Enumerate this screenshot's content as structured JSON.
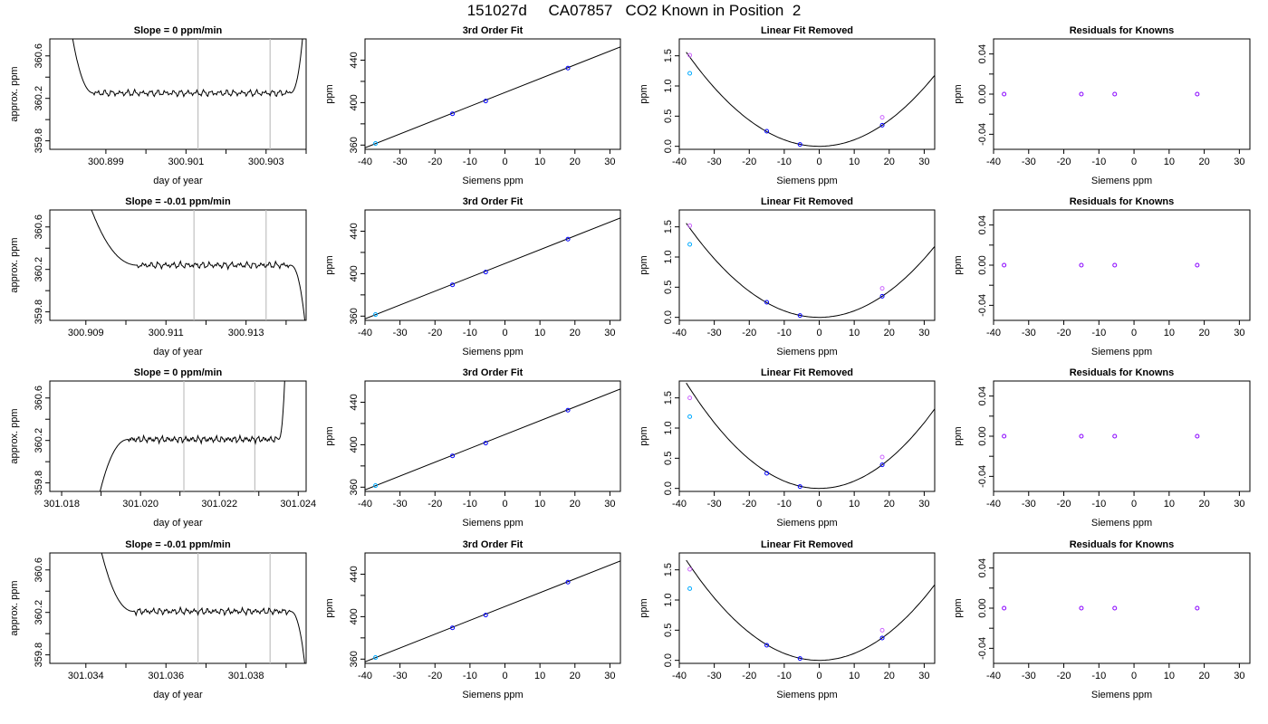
{
  "page": {
    "title": "151027d     CA07857   CO2 Known in Position  2"
  },
  "chart_data": [
    {
      "type": "line",
      "row": 1,
      "title": "Slope =  0  ppm/min",
      "xlabel": "day of year",
      "ylabel": "approx. ppm",
      "xlim": [
        300.8976,
        300.904
      ],
      "ylim": [
        359.72,
        360.76
      ],
      "xticks": [
        300.899,
        300.9,
        300.901,
        300.902,
        300.903,
        300.904
      ],
      "xtick_labels": [
        "300.899",
        "",
        "300.901",
        "",
        "300.903",
        ""
      ],
      "yticks": [
        359.8,
        360.0,
        360.2,
        360.4,
        360.6
      ],
      "ytick_labels": [
        "359.8",
        "",
        "360.2",
        "",
        "360.6"
      ],
      "markers": [
        300.9013,
        300.9031
      ],
      "trace": {
        "x0": 300.898,
        "x_plateau_start": 300.8987,
        "x_plateau_end": 300.9036,
        "x1": 300.904,
        "start_value": 361.2,
        "plateau_value": 360.25,
        "end_value": 361.2,
        "mode": "rise"
      }
    },
    {
      "type": "scatter",
      "row": 1,
      "title": "3rd Order Fit",
      "xlabel": "Siemens ppm",
      "ylabel": "ppm",
      "xlim": [
        -40,
        33
      ],
      "ylim": [
        356,
        460
      ],
      "xticks": [
        -40,
        -30,
        -20,
        -10,
        0,
        10,
        20,
        30
      ],
      "xtick_labels": [
        "-40",
        "-30",
        "-20",
        "-10",
        "0",
        "10",
        "20",
        "30"
      ],
      "yticks": [
        360,
        380,
        400,
        420,
        440
      ],
      "ytick_labels": [
        "360",
        "",
        "400",
        "",
        "440"
      ],
      "fit_line": {
        "x": [
          -40,
          33
        ],
        "y": [
          357.5,
          452.5
        ]
      },
      "points": [
        {
          "x": -37,
          "y": 361.5,
          "color": "#00aaff"
        },
        {
          "x": -15,
          "y": 389.5,
          "color": "#0000ff"
        },
        {
          "x": -5.5,
          "y": 401.5,
          "color": "#0000ff"
        },
        {
          "x": 18,
          "y": 432.5,
          "color": "#0000ff"
        }
      ]
    },
    {
      "type": "scatter",
      "row": 1,
      "title": "Linear Fit Removed",
      "xlabel": "Siemens ppm",
      "ylabel": "ppm",
      "xlim": [
        -40,
        33
      ],
      "ylim": [
        -0.05,
        1.78
      ],
      "xticks": [
        -40,
        -30,
        -20,
        -10,
        0,
        10,
        20,
        30
      ],
      "xtick_labels": [
        "-40",
        "-30",
        "-20",
        "-10",
        "0",
        "10",
        "20",
        "30"
      ],
      "yticks": [
        0,
        0.5,
        1.0,
        1.5
      ],
      "ytick_labels": [
        "0.0",
        "0.5",
        "1.0",
        "1.5"
      ],
      "curve": {
        "a": 0.00108,
        "x_min": -38,
        "x_max": 33
      },
      "points": [
        {
          "x": -37,
          "y": 1.51,
          "color": "#cc66ff"
        },
        {
          "x": -37,
          "y": 1.21,
          "color": "#00aaff"
        },
        {
          "x": -15,
          "y": 0.25,
          "color": "#0000ff"
        },
        {
          "x": -5.5,
          "y": 0.03,
          "color": "#0000ff"
        },
        {
          "x": 18,
          "y": 0.48,
          "color": "#cc66ff"
        },
        {
          "x": 18,
          "y": 0.35,
          "color": "#0000ff"
        }
      ]
    },
    {
      "type": "scatter",
      "row": 1,
      "title": "Residuals for Knowns",
      "xlabel": "Siemens ppm",
      "ylabel": "ppm",
      "xlim": [
        -40,
        33
      ],
      "ylim": [
        -0.055,
        0.055
      ],
      "xticks": [
        -40,
        -30,
        -20,
        -10,
        0,
        10,
        20,
        30
      ],
      "xtick_labels": [
        "-40",
        "-30",
        "-20",
        "-10",
        "0",
        "10",
        "20",
        "30"
      ],
      "yticks": [
        -0.04,
        -0.02,
        0,
        0.02,
        0.04
      ],
      "ytick_labels": [
        "-0.04",
        "",
        "0.00",
        "",
        "0.04"
      ],
      "points": [
        {
          "x": -37,
          "y": 0,
          "color": "#8800ff"
        },
        {
          "x": -15,
          "y": 0,
          "color": "#8800ff"
        },
        {
          "x": -5.5,
          "y": 0,
          "color": "#8800ff"
        },
        {
          "x": 18,
          "y": 0,
          "color": "#8800ff"
        }
      ]
    },
    {
      "type": "line",
      "row": 2,
      "title": "Slope =  -0.01  ppm/min",
      "xlabel": "day of year",
      "ylabel": "approx. ppm",
      "xlim": [
        300.9081,
        300.9145
      ],
      "ylim": [
        359.72,
        360.76
      ],
      "xticks": [
        300.909,
        300.91,
        300.911,
        300.912,
        300.913,
        300.914
      ],
      "xtick_labels": [
        "300.909",
        "",
        "300.911",
        "",
        "300.913",
        ""
      ],
      "yticks": [
        359.8,
        360.0,
        360.2,
        360.4,
        360.6
      ],
      "ytick_labels": [
        "359.8",
        "",
        "360.2",
        "",
        "360.6"
      ],
      "markers": [
        300.9117,
        300.9135
      ],
      "trace": {
        "x0": 300.9087,
        "x_plateau_start": 300.9103,
        "x_plateau_end": 300.9141,
        "x1": 300.9145,
        "start_value": 361.3,
        "plateau_value": 360.24,
        "end_value": 359.6,
        "mode": "fall"
      }
    },
    {
      "type": "scatter",
      "row": 2,
      "title": "3rd Order Fit",
      "xlabel": "Siemens ppm",
      "ylabel": "ppm",
      "xlim": [
        -40,
        33
      ],
      "ylim": [
        356,
        460
      ],
      "xticks": [
        -40,
        -30,
        -20,
        -10,
        0,
        10,
        20,
        30
      ],
      "xtick_labels": [
        "-40",
        "-30",
        "-20",
        "-10",
        "0",
        "10",
        "20",
        "30"
      ],
      "yticks": [
        360,
        380,
        400,
        420,
        440
      ],
      "ytick_labels": [
        "360",
        "",
        "400",
        "",
        "440"
      ],
      "fit_line": {
        "x": [
          -40,
          33
        ],
        "y": [
          357.5,
          452.5
        ]
      },
      "points": [
        {
          "x": -37,
          "y": 361.5,
          "color": "#00aaff"
        },
        {
          "x": -15,
          "y": 389.5,
          "color": "#0000ff"
        },
        {
          "x": -5.5,
          "y": 401.5,
          "color": "#0000ff"
        },
        {
          "x": 18,
          "y": 432.5,
          "color": "#0000ff"
        }
      ]
    },
    {
      "type": "scatter",
      "row": 2,
      "title": "Linear Fit Removed",
      "xlabel": "Siemens ppm",
      "ylabel": "ppm",
      "xlim": [
        -40,
        33
      ],
      "ylim": [
        -0.05,
        1.78
      ],
      "xticks": [
        -40,
        -30,
        -20,
        -10,
        0,
        10,
        20,
        30
      ],
      "xtick_labels": [
        "-40",
        "-30",
        "-20",
        "-10",
        "0",
        "10",
        "20",
        "30"
      ],
      "yticks": [
        0,
        0.5,
        1.0,
        1.5
      ],
      "ytick_labels": [
        "0.0",
        "0.5",
        "1.0",
        "1.5"
      ],
      "curve": {
        "a": 0.00108,
        "x_min": -38,
        "x_max": 33
      },
      "points": [
        {
          "x": -37,
          "y": 1.52,
          "color": "#cc66ff"
        },
        {
          "x": -37,
          "y": 1.21,
          "color": "#00aaff"
        },
        {
          "x": -15,
          "y": 0.25,
          "color": "#0000ff"
        },
        {
          "x": -5.5,
          "y": 0.03,
          "color": "#0000ff"
        },
        {
          "x": 18,
          "y": 0.48,
          "color": "#cc66ff"
        },
        {
          "x": 18,
          "y": 0.35,
          "color": "#0000ff"
        }
      ]
    },
    {
      "type": "scatter",
      "row": 2,
      "title": "Residuals for Knowns",
      "xlabel": "Siemens ppm",
      "ylabel": "ppm",
      "xlim": [
        -40,
        33
      ],
      "ylim": [
        -0.055,
        0.055
      ],
      "xticks": [
        -40,
        -30,
        -20,
        -10,
        0,
        10,
        20,
        30
      ],
      "xtick_labels": [
        "-40",
        "-30",
        "-20",
        "-10",
        "0",
        "10",
        "20",
        "30"
      ],
      "yticks": [
        -0.04,
        -0.02,
        0,
        0.02,
        0.04
      ],
      "ytick_labels": [
        "-0.04",
        "",
        "0.00",
        "",
        "0.04"
      ],
      "points": [
        {
          "x": -37,
          "y": 0,
          "color": "#8800ff"
        },
        {
          "x": -15,
          "y": 0,
          "color": "#8800ff"
        },
        {
          "x": -5.5,
          "y": 0,
          "color": "#8800ff"
        },
        {
          "x": 18,
          "y": 0,
          "color": "#8800ff"
        }
      ]
    },
    {
      "type": "line",
      "row": 3,
      "title": "Slope =  0  ppm/min",
      "xlabel": "day of year",
      "ylabel": "approx. ppm",
      "xlim": [
        301.0177,
        301.0242
      ],
      "ylim": [
        359.72,
        360.76
      ],
      "xticks": [
        301.018,
        301.019,
        301.02,
        301.021,
        301.022,
        301.023,
        301.024
      ],
      "xtick_labels": [
        "301.018",
        "",
        "301.020",
        "",
        "301.022",
        "",
        "301.024"
      ],
      "yticks": [
        359.8,
        360.0,
        360.2,
        360.4,
        360.6
      ],
      "ytick_labels": [
        "359.8",
        "",
        "360.2",
        "",
        "360.6"
      ],
      "markers": [
        301.0211,
        301.0229
      ],
      "trace": {
        "x0": 301.0189,
        "x_plateau_start": 301.0197,
        "x_plateau_end": 301.0235,
        "x1": 301.0237,
        "start_value": 359.6,
        "plateau_value": 360.21,
        "end_value": 361.2,
        "mode": "rise"
      }
    },
    {
      "type": "scatter",
      "row": 3,
      "title": "3rd Order Fit",
      "xlabel": "Siemens ppm",
      "ylabel": "ppm",
      "xlim": [
        -40,
        33
      ],
      "ylim": [
        356,
        460
      ],
      "xticks": [
        -40,
        -30,
        -20,
        -10,
        0,
        10,
        20,
        30
      ],
      "xtick_labels": [
        "-40",
        "-30",
        "-20",
        "-10",
        "0",
        "10",
        "20",
        "30"
      ],
      "yticks": [
        360,
        380,
        400,
        420,
        440
      ],
      "ytick_labels": [
        "360",
        "",
        "400",
        "",
        "440"
      ],
      "fit_line": {
        "x": [
          -40,
          33
        ],
        "y": [
          357.5,
          452.5
        ]
      },
      "points": [
        {
          "x": -37,
          "y": 361.5,
          "color": "#00aaff"
        },
        {
          "x": -15,
          "y": 389.5,
          "color": "#0000ff"
        },
        {
          "x": -5.5,
          "y": 401.5,
          "color": "#0000ff"
        },
        {
          "x": 18,
          "y": 432.5,
          "color": "#0000ff"
        }
      ]
    },
    {
      "type": "scatter",
      "row": 3,
      "title": "Linear Fit Removed",
      "xlabel": "Siemens ppm",
      "ylabel": "ppm",
      "xlim": [
        -40,
        33
      ],
      "ylim": [
        -0.05,
        1.78
      ],
      "xticks": [
        -40,
        -30,
        -20,
        -10,
        0,
        10,
        20,
        30
      ],
      "xtick_labels": [
        "-40",
        "-30",
        "-20",
        "-10",
        "0",
        "10",
        "20",
        "30"
      ],
      "yticks": [
        0,
        0.5,
        1.0,
        1.5
      ],
      "ytick_labels": [
        "0.0",
        "0.5",
        "1.0",
        "1.5"
      ],
      "curve": {
        "a": 0.00121,
        "x_min": -38,
        "x_max": 33
      },
      "points": [
        {
          "x": -37,
          "y": 1.5,
          "color": "#cc66ff"
        },
        {
          "x": -37,
          "y": 1.19,
          "color": "#00aaff"
        },
        {
          "x": -15,
          "y": 0.25,
          "color": "#0000ff"
        },
        {
          "x": -5.5,
          "y": 0.03,
          "color": "#0000ff"
        },
        {
          "x": 18,
          "y": 0.52,
          "color": "#cc66ff"
        },
        {
          "x": 18,
          "y": 0.39,
          "color": "#0000ff"
        }
      ]
    },
    {
      "type": "scatter",
      "row": 3,
      "title": "Residuals for Knowns",
      "xlabel": "Siemens ppm",
      "ylabel": "ppm",
      "xlim": [
        -40,
        33
      ],
      "ylim": [
        -0.055,
        0.055
      ],
      "xticks": [
        -40,
        -30,
        -20,
        -10,
        0,
        10,
        20,
        30
      ],
      "xtick_labels": [
        "-40",
        "-30",
        "-20",
        "-10",
        "0",
        "10",
        "20",
        "30"
      ],
      "yticks": [
        -0.04,
        -0.02,
        0,
        0.02,
        0.04
      ],
      "ytick_labels": [
        "-0.04",
        "",
        "0.00",
        "",
        "0.04"
      ],
      "points": [
        {
          "x": -37,
          "y": 0,
          "color": "#8800ff"
        },
        {
          "x": -15,
          "y": 0,
          "color": "#8800ff"
        },
        {
          "x": -5.5,
          "y": 0,
          "color": "#8800ff"
        },
        {
          "x": 18,
          "y": 0,
          "color": "#8800ff"
        }
      ]
    },
    {
      "type": "line",
      "row": 4,
      "title": "Slope =  -0.01  ppm/min",
      "xlabel": "day of year",
      "ylabel": "approx. ppm",
      "xlim": [
        301.0331,
        301.0395
      ],
      "ylim": [
        359.72,
        360.76
      ],
      "xticks": [
        301.034,
        301.035,
        301.036,
        301.037,
        301.038,
        301.039
      ],
      "xtick_labels": [
        "301.034",
        "",
        "301.036",
        "",
        "301.038",
        ""
      ],
      "yticks": [
        359.8,
        360.0,
        360.2,
        360.4,
        360.6
      ],
      "ytick_labels": [
        "359.8",
        "",
        "360.2",
        "",
        "360.6"
      ],
      "markers": [
        301.0368,
        301.0386
      ],
      "trace": {
        "x0": 301.0341,
        "x_plateau_start": 301.0352,
        "x_plateau_end": 301.0391,
        "x1": 301.0395,
        "start_value": 361.3,
        "plateau_value": 360.21,
        "end_value": 359.6,
        "mode": "fall"
      }
    },
    {
      "type": "scatter",
      "row": 4,
      "title": "3rd Order Fit",
      "xlabel": "Siemens ppm",
      "ylabel": "ppm",
      "xlim": [
        -40,
        33
      ],
      "ylim": [
        356,
        460
      ],
      "xticks": [
        -40,
        -30,
        -20,
        -10,
        0,
        10,
        20,
        30
      ],
      "xtick_labels": [
        "-40",
        "-30",
        "-20",
        "-10",
        "0",
        "10",
        "20",
        "30"
      ],
      "yticks": [
        360,
        380,
        400,
        420,
        440
      ],
      "ytick_labels": [
        "360",
        "",
        "400",
        "",
        "440"
      ],
      "fit_line": {
        "x": [
          -40,
          33
        ],
        "y": [
          357.5,
          452.5
        ]
      },
      "points": [
        {
          "x": -37,
          "y": 361.5,
          "color": "#00aaff"
        },
        {
          "x": -15,
          "y": 389.5,
          "color": "#0000ff"
        },
        {
          "x": -5.5,
          "y": 401.5,
          "color": "#0000ff"
        },
        {
          "x": 18,
          "y": 432.5,
          "color": "#0000ff"
        }
      ]
    },
    {
      "type": "scatter",
      "row": 4,
      "title": "Linear Fit Removed",
      "xlabel": "Siemens ppm",
      "ylabel": "ppm",
      "xlim": [
        -40,
        33
      ],
      "ylim": [
        -0.05,
        1.78
      ],
      "xticks": [
        -40,
        -30,
        -20,
        -10,
        0,
        10,
        20,
        30
      ],
      "xtick_labels": [
        "-40",
        "-30",
        "-20",
        "-10",
        "0",
        "10",
        "20",
        "30"
      ],
      "yticks": [
        0,
        0.5,
        1.0,
        1.5
      ],
      "ytick_labels": [
        "0.0",
        "0.5",
        "1.0",
        "1.5"
      ],
      "curve": {
        "a": 0.00115,
        "x_min": -38,
        "x_max": 33
      },
      "points": [
        {
          "x": -37,
          "y": 1.51,
          "color": "#cc66ff"
        },
        {
          "x": -37,
          "y": 1.19,
          "color": "#00aaff"
        },
        {
          "x": -15,
          "y": 0.25,
          "color": "#0000ff"
        },
        {
          "x": -5.5,
          "y": 0.03,
          "color": "#0000ff"
        },
        {
          "x": 18,
          "y": 0.5,
          "color": "#cc66ff"
        },
        {
          "x": 18,
          "y": 0.37,
          "color": "#0000ff"
        }
      ]
    },
    {
      "type": "scatter",
      "row": 4,
      "title": "Residuals for Knowns",
      "xlabel": "Siemens ppm",
      "ylabel": "ppm",
      "xlim": [
        -40,
        33
      ],
      "ylim": [
        -0.055,
        0.055
      ],
      "xticks": [
        -40,
        -30,
        -20,
        -10,
        0,
        10,
        20,
        30
      ],
      "xtick_labels": [
        "-40",
        "-30",
        "-20",
        "-10",
        "0",
        "10",
        "20",
        "30"
      ],
      "yticks": [
        -0.04,
        -0.02,
        0,
        0.02,
        0.04
      ],
      "ytick_labels": [
        "-0.04",
        "",
        "0.00",
        "",
        "0.04"
      ],
      "points": [
        {
          "x": -37,
          "y": 0,
          "color": "#8800ff"
        },
        {
          "x": -15,
          "y": 0,
          "color": "#8800ff"
        },
        {
          "x": -5.5,
          "y": 0,
          "color": "#8800ff"
        },
        {
          "x": 18,
          "y": 0,
          "color": "#8800ff"
        }
      ]
    }
  ]
}
